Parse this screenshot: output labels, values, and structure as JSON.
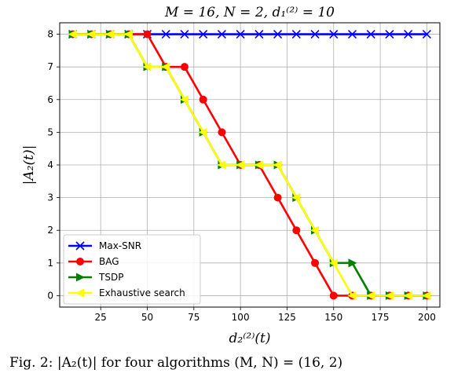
{
  "caption": "Fig. 2: |A₂(t)| for four algorithms (M, N) = (16, 2)",
  "chart_data": {
    "type": "line",
    "title": "M = 16, N = 2, d₁⁽²⁾ = 10",
    "xlabel": "d₂⁽²⁾(t)",
    "ylabel": "|A₂(t)|",
    "xlim": [
      3,
      207
    ],
    "ylim": [
      -0.35,
      8.35
    ],
    "xticks": [
      25,
      50,
      75,
      100,
      125,
      150,
      175,
      200
    ],
    "yticks": [
      0,
      1,
      2,
      3,
      4,
      5,
      6,
      7,
      8
    ],
    "grid": true,
    "legend_position": "lower-left",
    "x": [
      10,
      20,
      30,
      40,
      50,
      60,
      70,
      80,
      90,
      100,
      110,
      120,
      130,
      140,
      150,
      160,
      170,
      180,
      190,
      200
    ],
    "series": [
      {
        "name": "Max-SNR",
        "color": "#0000ff",
        "marker": "x",
        "values": [
          8,
          8,
          8,
          8,
          8,
          8,
          8,
          8,
          8,
          8,
          8,
          8,
          8,
          8,
          8,
          8,
          8,
          8,
          8,
          8
        ]
      },
      {
        "name": "BAG",
        "color": "#ff0000",
        "marker": "circle",
        "values": [
          8,
          8,
          8,
          8,
          8,
          7,
          7,
          6,
          5,
          4,
          4,
          3,
          2,
          1,
          0,
          0,
          0,
          0,
          0,
          0
        ]
      },
      {
        "name": "TSDP",
        "color": "#008000",
        "marker": "triangle-right",
        "values": [
          8,
          8,
          8,
          8,
          7,
          7,
          6,
          5,
          4,
          4,
          4,
          4,
          3,
          2,
          1,
          1,
          0,
          0,
          0,
          0
        ]
      },
      {
        "name": "Exhaustive search",
        "color": "#ffff00",
        "marker": "triangle-left",
        "values": [
          8,
          8,
          8,
          8,
          7,
          7,
          6,
          5,
          4,
          4,
          4,
          4,
          3,
          2,
          1,
          0,
          0,
          0,
          0,
          0
        ]
      }
    ]
  }
}
